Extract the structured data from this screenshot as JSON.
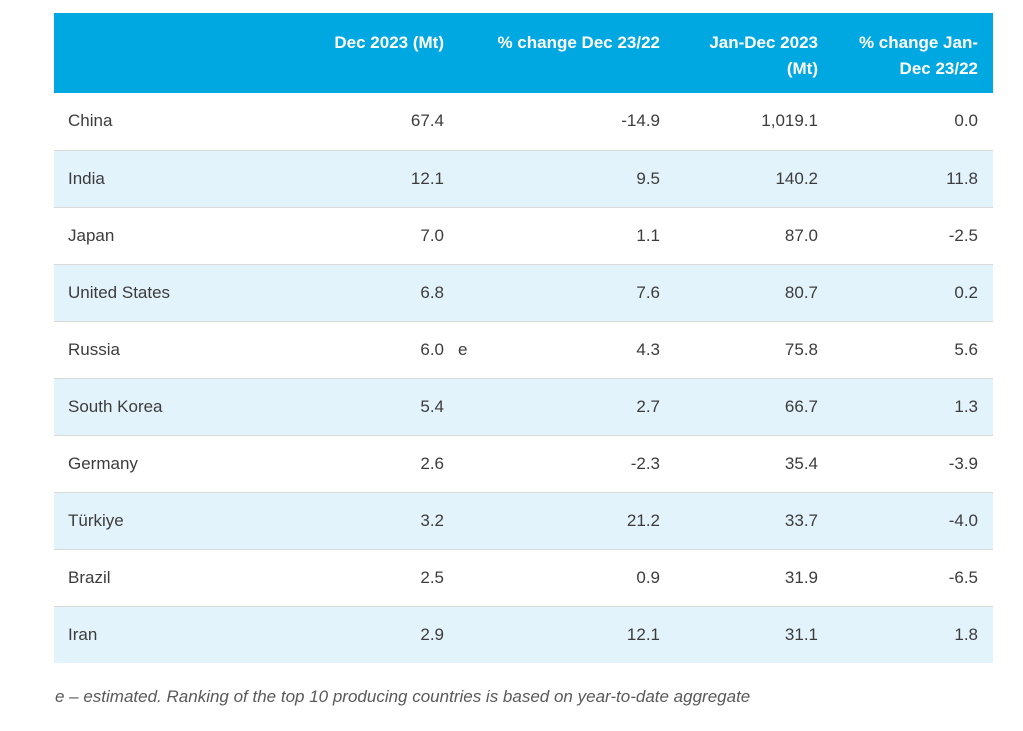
{
  "table": {
    "headers": {
      "country": "",
      "dec_2023": "Dec 2023 (Mt)",
      "pct_change_dec": "% change Dec 23/22",
      "jan_dec_2023": "Jan-Dec 2023 (Mt)",
      "pct_change_jan_dec": "% change Jan-Dec 23/22"
    },
    "rows": [
      {
        "country": "China",
        "dec_2023_mt": "67.4",
        "note": "",
        "pct_change_dec": "-14.9",
        "jan_dec_2023_mt": "1,019.1",
        "pct_change_jan_dec": "0.0"
      },
      {
        "country": "India",
        "dec_2023_mt": "12.1",
        "note": "",
        "pct_change_dec": "9.5",
        "jan_dec_2023_mt": "140.2",
        "pct_change_jan_dec": "11.8"
      },
      {
        "country": "Japan",
        "dec_2023_mt": "7.0",
        "note": "",
        "pct_change_dec": "1.1",
        "jan_dec_2023_mt": "87.0",
        "pct_change_jan_dec": "-2.5"
      },
      {
        "country": "United States",
        "dec_2023_mt": "6.8",
        "note": "",
        "pct_change_dec": "7.6",
        "jan_dec_2023_mt": "80.7",
        "pct_change_jan_dec": "0.2"
      },
      {
        "country": "Russia",
        "dec_2023_mt": "6.0",
        "note": "e",
        "pct_change_dec": "4.3",
        "jan_dec_2023_mt": "75.8",
        "pct_change_jan_dec": "5.6"
      },
      {
        "country": "South Korea",
        "dec_2023_mt": "5.4",
        "note": "",
        "pct_change_dec": "2.7",
        "jan_dec_2023_mt": "66.7",
        "pct_change_jan_dec": "1.3"
      },
      {
        "country": "Germany",
        "dec_2023_mt": "2.6",
        "note": "",
        "pct_change_dec": "-2.3",
        "jan_dec_2023_mt": "35.4",
        "pct_change_jan_dec": "-3.9"
      },
      {
        "country": "Türkiye",
        "dec_2023_mt": "3.2",
        "note": "",
        "pct_change_dec": "21.2",
        "jan_dec_2023_mt": "33.7",
        "pct_change_jan_dec": "-4.0"
      },
      {
        "country": "Brazil",
        "dec_2023_mt": "2.5",
        "note": "",
        "pct_change_dec": "0.9",
        "jan_dec_2023_mt": "31.9",
        "pct_change_jan_dec": "-6.5"
      },
      {
        "country": "Iran",
        "dec_2023_mt": "2.9",
        "note": "",
        "pct_change_dec": "12.1",
        "jan_dec_2023_mt": "31.1",
        "pct_change_jan_dec": "1.8"
      }
    ],
    "footnote": "e – estimated. Ranking of the top 10 producing countries is based on year-to-date aggregate"
  },
  "colors": {
    "header_bg": "#00a8e1",
    "header_text": "#ffffff",
    "row_alt_bg": "#e3f3fb",
    "row_border": "#d9d9d9",
    "body_text": "#3c3c3c",
    "footnote_text": "#595959"
  }
}
